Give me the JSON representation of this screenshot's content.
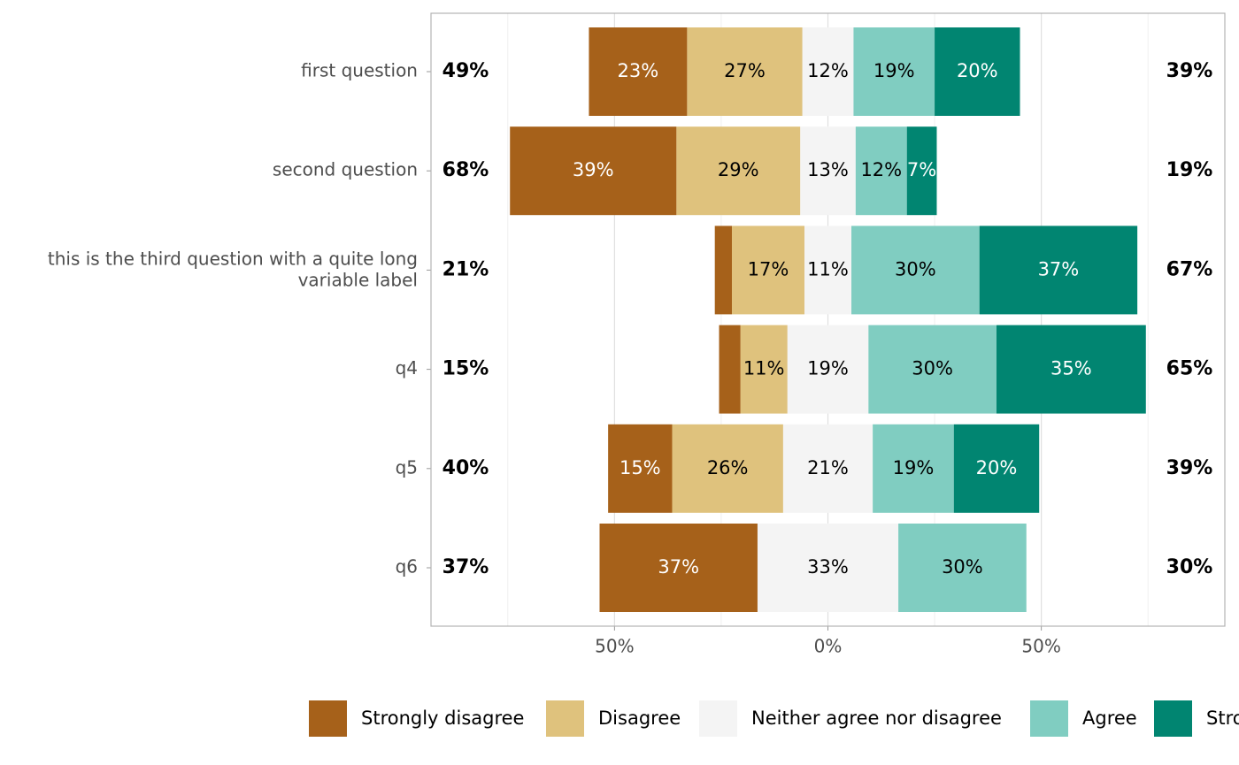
{
  "chart_data": {
    "type": "diverging-bar",
    "categories": [
      "first question",
      "second question",
      "this is the third question with a quite long\nvariable label",
      "q4",
      "q5",
      "q6"
    ],
    "series": [
      {
        "name": "Strongly disagree",
        "color": "#A6611A",
        "label_color": "#ffffff",
        "side": "left",
        "values": [
          23,
          39,
          4,
          5,
          15,
          37
        ],
        "value_labels": [
          "23%",
          "39%",
          null,
          null,
          "15%",
          "37%"
        ]
      },
      {
        "name": "Disagree",
        "color": "#DFC27D",
        "label_color": "#000000",
        "side": "left",
        "values": [
          27,
          29,
          17,
          11,
          26,
          null
        ],
        "value_labels": [
          "27%",
          "29%",
          "17%",
          "11%",
          "26%",
          null
        ]
      },
      {
        "name": "Neither agree nor disagree",
        "color": "#F4F4F4",
        "label_color": "#000000",
        "side": "center",
        "values": [
          12,
          13,
          11,
          19,
          21,
          33
        ],
        "value_labels": [
          "12%",
          "13%",
          "11%",
          "19%",
          "21%",
          "33%"
        ]
      },
      {
        "name": "Agree",
        "color": "#80CDC1",
        "label_color": "#000000",
        "side": "right",
        "values": [
          19,
          12,
          30,
          30,
          19,
          30
        ],
        "value_labels": [
          "19%",
          "12%",
          "30%",
          "30%",
          "19%",
          "30%"
        ]
      },
      {
        "name": "Strongly agree",
        "color": "#018571",
        "label_color": "#ffffff",
        "side": "right",
        "values": [
          20,
          7,
          37,
          35,
          20,
          null
        ],
        "value_labels": [
          "20%",
          "7%",
          "37%",
          "35%",
          "20%",
          null
        ]
      }
    ],
    "left_totals": [
      "49%",
      "68%",
      "21%",
      "15%",
      "40%",
      "37%"
    ],
    "right_totals": [
      "39%",
      "19%",
      "67%",
      "65%",
      "39%",
      "30%"
    ],
    "xlim": [
      -93,
      93
    ],
    "xticks": [
      {
        "value": -50,
        "label": "50%"
      },
      {
        "value": 0,
        "label": "0%"
      },
      {
        "value": 50,
        "label": "50%"
      }
    ],
    "minor_xticks": [
      -75,
      -25,
      25,
      75
    ],
    "grid": true
  }
}
